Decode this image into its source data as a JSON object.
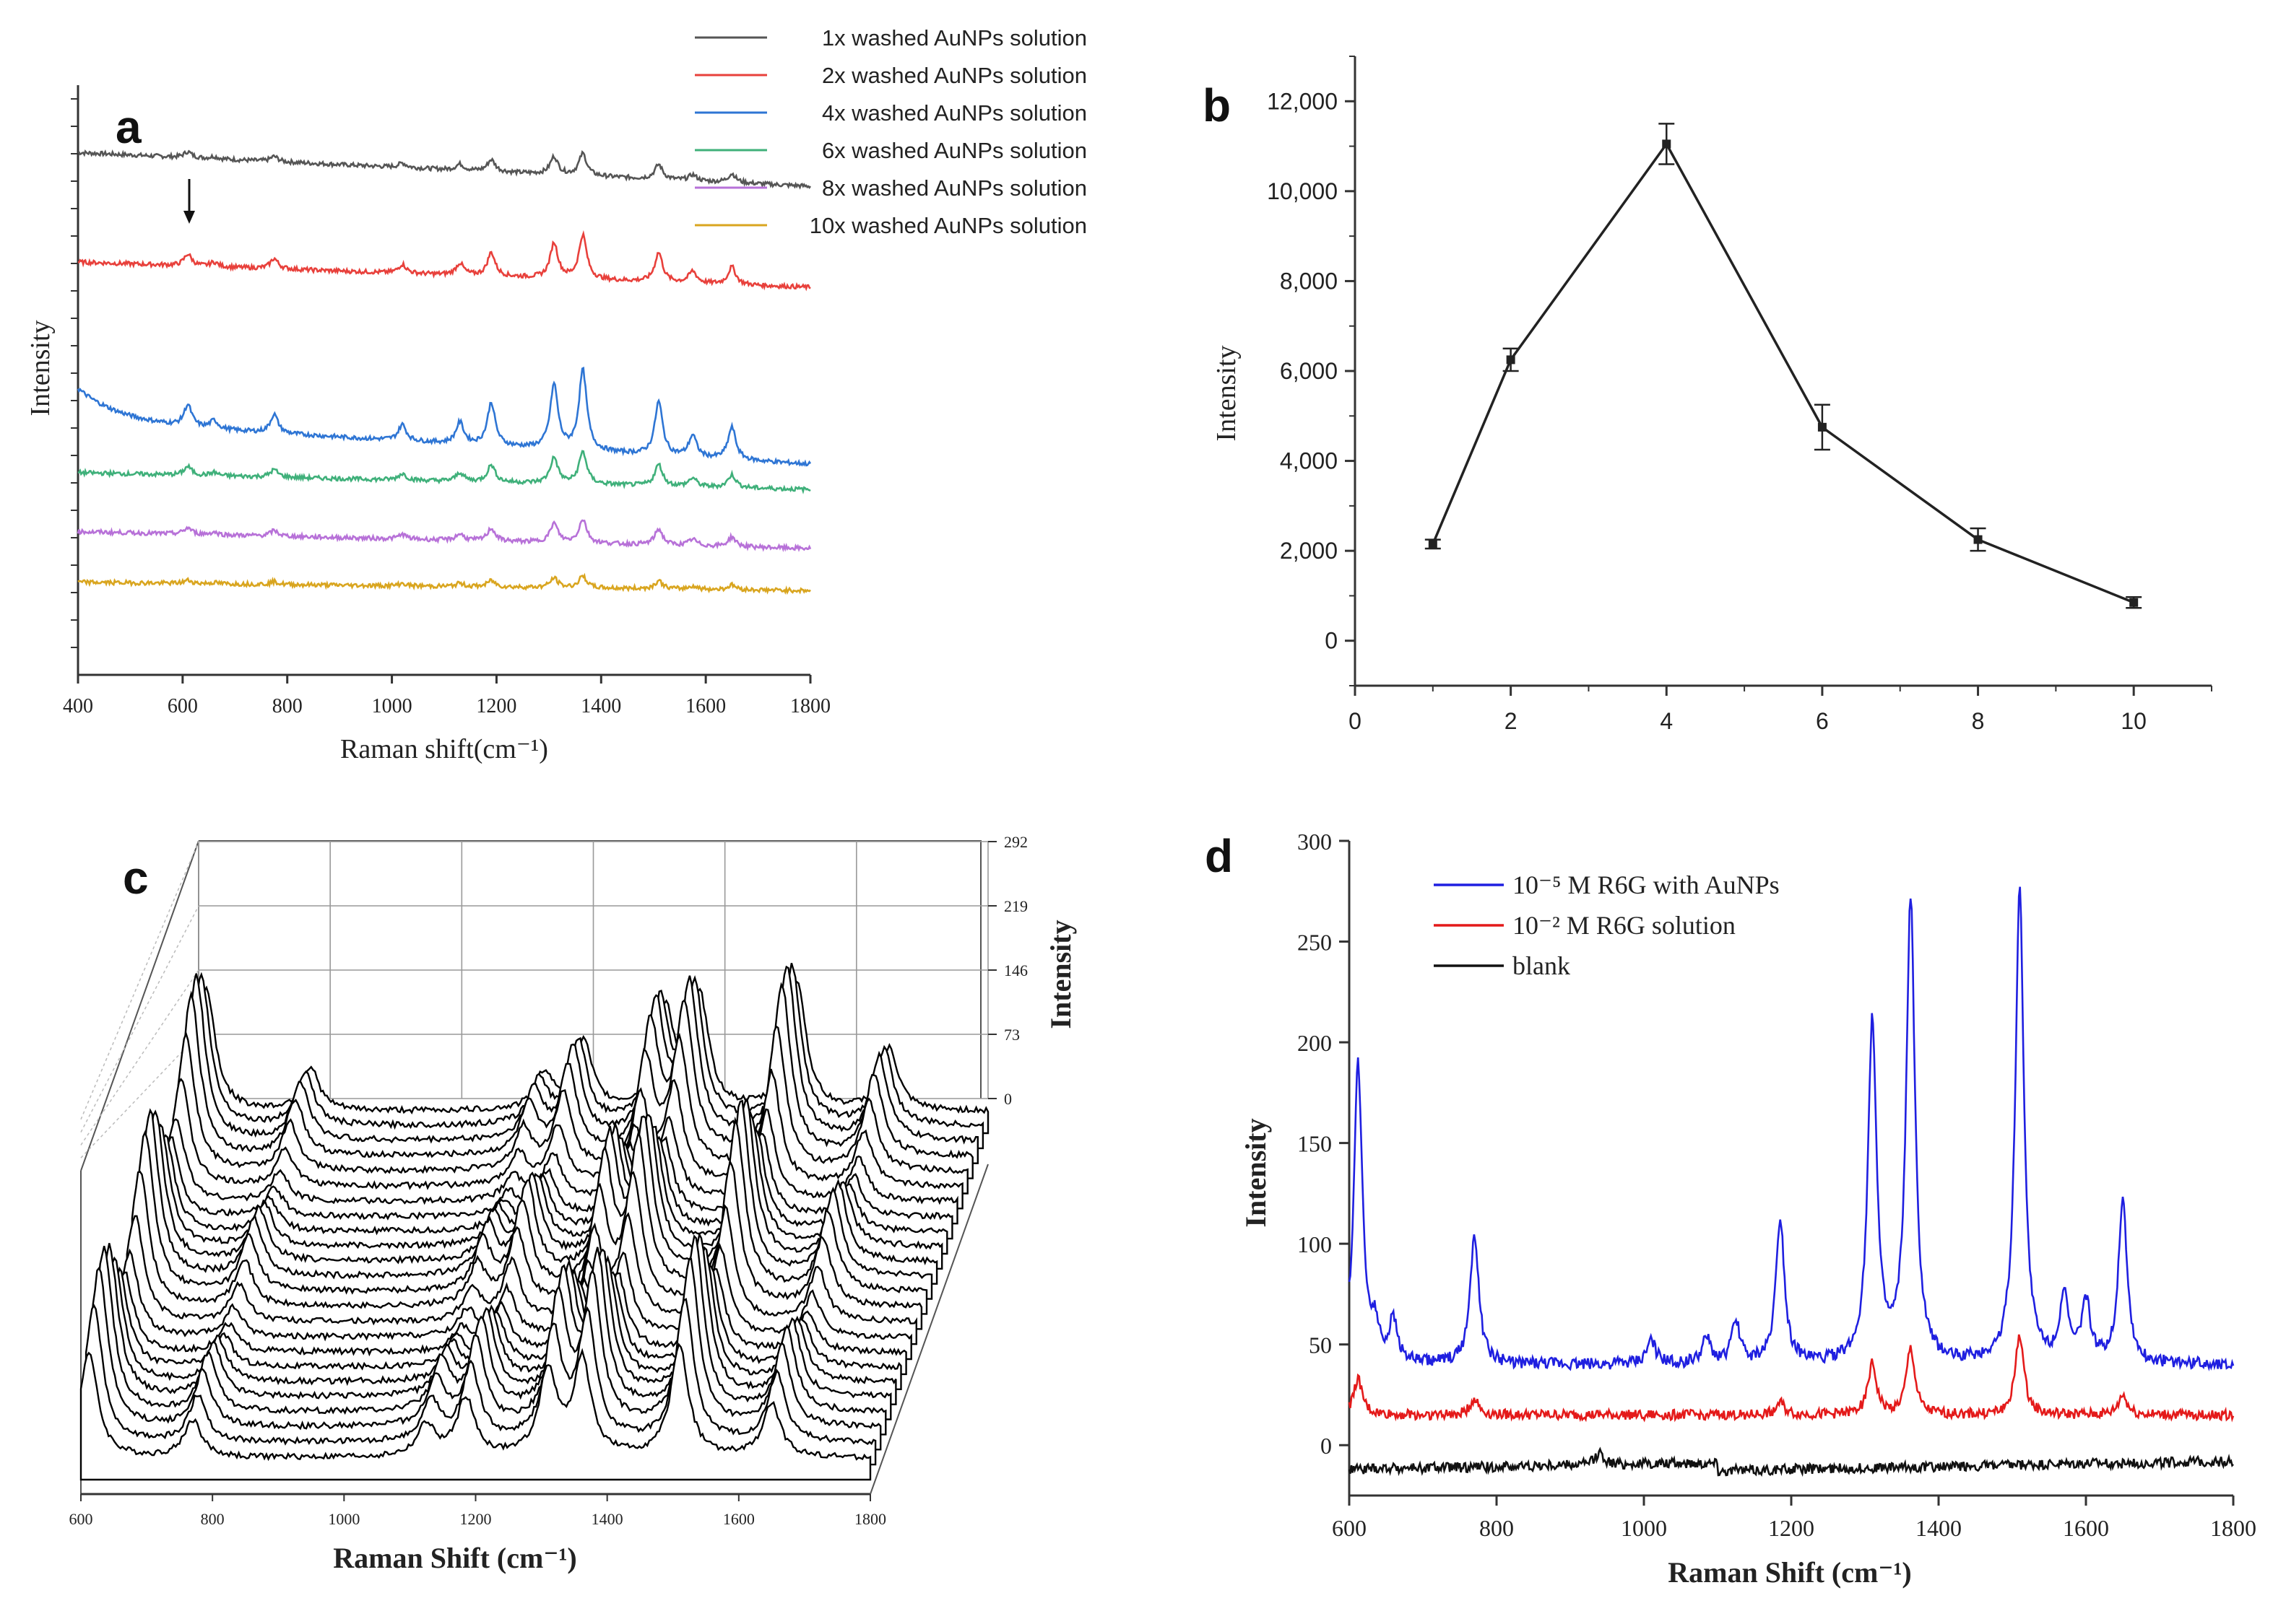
{
  "chart_data": [
    {
      "panel": "a",
      "type": "line",
      "title": "",
      "xlabel": "Raman shift(cm⁻¹)",
      "ylabel": "Intensity",
      "xlim": [
        400,
        1800
      ],
      "x_ticks": [
        "400",
        "600",
        "800",
        "1000",
        "1200",
        "1400",
        "1600",
        "1800"
      ],
      "annotation": "arrow at 610",
      "peaks": [
        [
          610,
          4
        ],
        [
          660,
          1.5
        ],
        [
          775,
          3.5
        ],
        [
          1020,
          3
        ],
        [
          1130,
          4
        ],
        [
          1190,
          8
        ],
        [
          1310,
          12
        ],
        [
          1365,
          15
        ],
        [
          1510,
          10
        ],
        [
          1575,
          4
        ],
        [
          1650,
          6
        ]
      ],
      "series": [
        {
          "name": "1x  washed AuNPs solution",
          "label": "1x",
          "color": "#555555",
          "baseline": [
            62,
            58
          ],
          "scale": 2.6
        },
        {
          "name": "2x  washed AuNPs solution",
          "label": "2x",
          "color": "#e8403b",
          "baseline": [
            49,
            46
          ],
          "scale": 5.2
        },
        {
          "name": "4x  washed AuNPs solution",
          "label": "4x",
          "color": "#2e75d4",
          "baseline": [
            30,
            25
          ],
          "scale": 9.5
        },
        {
          "name": "6x  washed AuNPs solution",
          "label": "6x",
          "color": "#3fb07a",
          "baseline": [
            24,
            22
          ],
          "scale": 3.8
        },
        {
          "name": "8x  washed AuNPs solution",
          "label": "8x",
          "color": "#b771d8",
          "baseline": [
            17,
            15
          ],
          "scale": 2.8
        },
        {
          "name": "10x  washed AuNPs solution",
          "label": "10x",
          "color": "#d9a51f",
          "baseline": [
            11,
            10
          ],
          "scale": 1.4
        }
      ]
    },
    {
      "panel": "b",
      "type": "line",
      "title": "",
      "xlabel": "",
      "ylabel": "Intensity",
      "xlim": [
        0,
        11
      ],
      "ylim": [
        -1000,
        13000
      ],
      "x_ticks": [
        "0",
        "2",
        "4",
        "6",
        "8",
        "10"
      ],
      "y_ticks": [
        "0",
        "2,000",
        "4,000",
        "6,000",
        "8,000",
        "10,000",
        "12,000"
      ],
      "x": [
        1,
        2,
        4,
        6,
        8,
        10
      ],
      "y": [
        2150,
        6250,
        11050,
        4750,
        2250,
        850
      ],
      "yerr": [
        100,
        250,
        450,
        500,
        250,
        120
      ]
    },
    {
      "panel": "c",
      "type": "line",
      "title": "",
      "xlabel": "Raman Shift (cm⁻¹)",
      "ylabel": "Intensity",
      "xlim": [
        600,
        1800
      ],
      "x_ticks": [
        "600",
        "800",
        "1000",
        "1200",
        "1400",
        "1600",
        "1800"
      ],
      "z_ticks": [
        "0",
        "73",
        "146",
        "219",
        "292"
      ],
      "n_spectra": 24,
      "peaks": [
        [
          612,
          1.0
        ],
        [
          770,
          0.35
        ],
        [
          1125,
          0.3
        ],
        [
          1185,
          0.55
        ],
        [
          1310,
          0.8
        ],
        [
          1362,
          0.9
        ],
        [
          1510,
          1.05
        ],
        [
          1650,
          0.5
        ]
      ]
    },
    {
      "panel": "d",
      "type": "line",
      "title": "",
      "xlabel": "Raman Shift (cm⁻¹)",
      "ylabel": "Intensity",
      "xlim": [
        600,
        1800
      ],
      "ylim": [
        -25,
        300
      ],
      "x_ticks": [
        "600",
        "800",
        "1000",
        "1200",
        "1400",
        "1600",
        "1800"
      ],
      "y_ticks": [
        "0",
        "50",
        "100",
        "150",
        "200",
        "250",
        "300"
      ],
      "series": [
        {
          "name": "10⁻⁵ M R6G with AuNPs",
          "color": "#1f1fe0",
          "baseline": 40,
          "peaks": [
            [
              612,
              148
            ],
            [
              635,
              15
            ],
            [
              660,
              20
            ],
            [
              770,
              65
            ],
            [
              1010,
              12
            ],
            [
              1085,
              12
            ],
            [
              1125,
              20
            ],
            [
              1185,
              72
            ],
            [
              1310,
              170
            ],
            [
              1362,
              230
            ],
            [
              1510,
              235
            ],
            [
              1570,
              32
            ],
            [
              1600,
              30
            ],
            [
              1650,
              82
            ]
          ]
        },
        {
          "name": "10⁻² M R6G solution",
          "color": "#e41a1a",
          "baseline": 15,
          "peaks": [
            [
              612,
              18
            ],
            [
              770,
              8
            ],
            [
              1185,
              6
            ],
            [
              1310,
              25
            ],
            [
              1362,
              33
            ],
            [
              1510,
              40
            ],
            [
              1650,
              10
            ]
          ]
        },
        {
          "name": "blank",
          "color": "#111111",
          "baseline": -12,
          "peaks": [
            [
              940,
              6
            ]
          ]
        }
      ]
    }
  ],
  "panels": {
    "a": {
      "label": "a"
    },
    "b": {
      "label": "b"
    },
    "c": {
      "label": "c"
    },
    "d": {
      "label": "d"
    }
  }
}
